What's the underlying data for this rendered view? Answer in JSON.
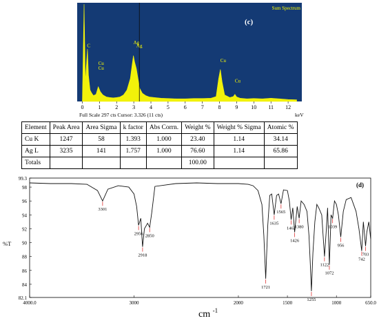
{
  "chart_data": [
    {
      "type": "line",
      "panel_label": "(c)",
      "corner_label": "Sum Spectrum",
      "status_line": "Full Scale 297 cts Cursor: 3.326  (11 cts)",
      "xunit": "keV",
      "xlim": [
        -0.3,
        12.8
      ],
      "ylim": [
        0,
        297
      ],
      "xticks": [
        "0",
        "1",
        "2",
        "3",
        "4",
        "5",
        "6",
        "7",
        "8",
        "9",
        "10",
        "11",
        "12"
      ],
      "peak_labels": [
        {
          "text": "C",
          "x": 0.28,
          "y": 165
        },
        {
          "text": "Cu",
          "x": 0.93,
          "y": 112
        },
        {
          "text": "Cu",
          "x": 0.93,
          "y": 97
        },
        {
          "text": "Ag",
          "x": 2.98,
          "y": 175
        },
        {
          "text": "Ag",
          "x": 3.15,
          "y": 165
        },
        {
          "text": "Cu",
          "x": 8.05,
          "y": 120
        },
        {
          "text": "Cu",
          "x": 8.9,
          "y": 58
        }
      ],
      "cursor_kev": 3.326,
      "series": [
        {
          "x": [
            0.0,
            0.1,
            0.18,
            0.25,
            0.3,
            0.36,
            0.45,
            0.55,
            0.65,
            0.8,
            0.93,
            1.05,
            1.2,
            1.4,
            1.6,
            1.8,
            2.0,
            2.2,
            2.4,
            2.6,
            2.8,
            2.9,
            2.98,
            3.05,
            3.15,
            3.25,
            3.35,
            3.5,
            3.7,
            3.9,
            4.2,
            4.6,
            5.0,
            5.5,
            6.0,
            6.5,
            7.0,
            7.5,
            7.8,
            7.95,
            8.05,
            8.15,
            8.3,
            8.6,
            8.8,
            8.9,
            9.0,
            9.2,
            9.6,
            10.0,
            10.5,
            11.0,
            11.5,
            12.0,
            12.5
          ],
          "y": [
            2,
            297,
            60,
            120,
            160,
            80,
            35,
            25,
            18,
            22,
            45,
            30,
            20,
            14,
            12,
            11,
            12,
            14,
            20,
            35,
            70,
            110,
            140,
            120,
            100,
            70,
            40,
            25,
            18,
            14,
            12,
            10,
            9,
            8,
            8,
            9,
            9,
            10,
            15,
            70,
            98,
            60,
            20,
            12,
            15,
            22,
            14,
            10,
            8,
            9,
            8,
            10,
            8,
            6,
            5
          ]
        }
      ]
    },
    {
      "type": "table",
      "columns": [
        "Element",
        "Peak Area",
        "Area Sigma",
        "k factor",
        "Abs Corrn.",
        "Weight %",
        "Weight % Sigma",
        "Atomic %"
      ],
      "rows": [
        [
          "Cu K",
          "1247",
          "58",
          "1.393",
          "1.000",
          "23.40",
          "1.14",
          "34.14"
        ],
        [
          "Ag L",
          "3235",
          "141",
          "1.757",
          "1.000",
          "76.60",
          "1.14",
          "65.86"
        ],
        [
          "Totals",
          "",
          "",
          "",
          "",
          "100.00",
          "",
          ""
        ]
      ]
    },
    {
      "type": "line",
      "panel_label": "(d)",
      "ylabel": "%T",
      "xlabel": "cm",
      "xlabel_sup": "-1",
      "xlim": [
        4000,
        650
      ],
      "ylim": [
        82.1,
        99.3
      ],
      "xticks": [
        "4000.0",
        "3000",
        "2000",
        "1500",
        "1000",
        "650.0"
      ],
      "yticks": [
        "99.3",
        "98",
        "96",
        "94",
        "92",
        "90",
        "88",
        "86",
        "84",
        "82.1"
      ],
      "annotations": [
        "3301",
        "2956",
        "2918",
        "2850",
        "1721",
        "1635",
        "1565",
        "1462",
        "1426",
        "1380",
        "1255",
        "1122",
        "1072",
        "1039",
        "956",
        "742",
        "703"
      ],
      "series": [
        {
          "x": [
            4000,
            3800,
            3600,
            3450,
            3350,
            3301,
            3250,
            3150,
            3050,
            3000,
            2975,
            2956,
            2935,
            2918,
            2900,
            2870,
            2850,
            2830,
            2800,
            2600,
            2400,
            2200,
            2000,
            1900,
            1850,
            1800,
            1760,
            1740,
            1721,
            1700,
            1680,
            1660,
            1635,
            1610,
            1590,
            1565,
            1540,
            1500,
            1480,
            1462,
            1445,
            1426,
            1400,
            1380,
            1360,
            1330,
            1300,
            1280,
            1265,
            1255,
            1240,
            1220,
            1200,
            1180,
            1150,
            1122,
            1105,
            1090,
            1072,
            1055,
            1039,
            1020,
            1000,
            980,
            956,
            930,
            900,
            850,
            800,
            770,
            742,
            725,
            703,
            690,
            670,
            650
          ],
          "y": [
            98.6,
            98.5,
            98.5,
            98.4,
            97.5,
            96.0,
            97.7,
            98.2,
            98.0,
            97.0,
            95.2,
            92.5,
            93.5,
            89.4,
            92.0,
            92.8,
            92.2,
            94.3,
            98.1,
            98.5,
            98.6,
            98.5,
            98.5,
            98.4,
            98.2,
            97.5,
            95.5,
            91.0,
            84.8,
            92.5,
            96.8,
            97.0,
            94.0,
            96.8,
            97.0,
            95.6,
            97.6,
            97.5,
            96.0,
            93.3,
            95.0,
            91.5,
            95.2,
            93.5,
            96.0,
            95.5,
            94.5,
            91.0,
            86.5,
            83.0,
            88.5,
            93.0,
            95.5,
            95.0,
            94.0,
            88.0,
            91.5,
            95.0,
            86.8,
            94.0,
            93.5,
            96.0,
            95.5,
            94.0,
            90.8,
            94.5,
            96.2,
            96.5,
            94.5,
            92.0,
            88.8,
            93.0,
            89.5,
            91.5,
            93.0,
            90.5
          ]
        }
      ]
    }
  ]
}
